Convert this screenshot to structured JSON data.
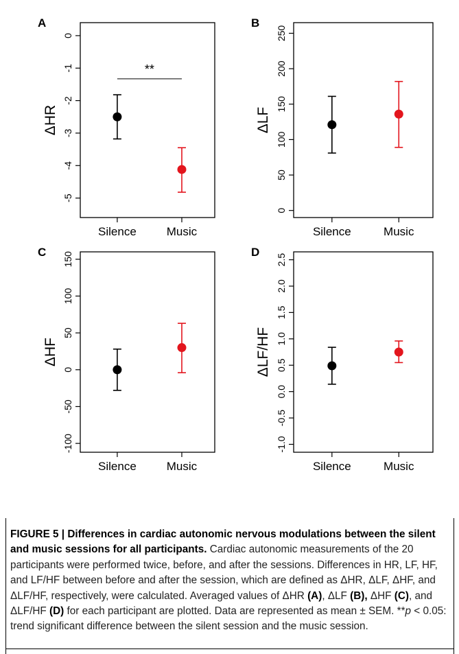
{
  "colors": {
    "silence": "#000000",
    "music": "#e3151d"
  },
  "chart_data": [
    {
      "panel": "A",
      "type": "scatter",
      "ylabel": "ΔHR",
      "categories": [
        "Silence",
        "Music"
      ],
      "ylim": [
        -5.6,
        0.4
      ],
      "yticks": [
        0,
        -1,
        -2,
        -3,
        -4,
        -5
      ],
      "yticklabels": [
        "0",
        "-1",
        "-2",
        "-3",
        "-4",
        "-5"
      ],
      "series": [
        {
          "category": "Silence",
          "mean": -2.5,
          "err_low": -3.18,
          "err_high": -1.82,
          "color": "silence"
        },
        {
          "category": "Music",
          "mean": -4.12,
          "err_low": -4.82,
          "err_high": -3.45,
          "color": "music"
        }
      ],
      "annotation": {
        "text": "**",
        "y": -1.33
      }
    },
    {
      "panel": "B",
      "type": "scatter",
      "ylabel": "ΔLF",
      "categories": [
        "Silence",
        "Music"
      ],
      "ylim": [
        -10,
        265
      ],
      "yticks": [
        0,
        50,
        100,
        150,
        200,
        250
      ],
      "yticklabels": [
        "0",
        "50",
        "100",
        "150",
        "200",
        "250"
      ],
      "series": [
        {
          "category": "Silence",
          "mean": 121,
          "err_low": 81,
          "err_high": 161,
          "color": "silence"
        },
        {
          "category": "Music",
          "mean": 136,
          "err_low": 89,
          "err_high": 182,
          "color": "music"
        }
      ]
    },
    {
      "panel": "C",
      "type": "scatter",
      "ylabel": "ΔHF",
      "categories": [
        "Silence",
        "Music"
      ],
      "ylim": [
        -112,
        160
      ],
      "yticks": [
        150,
        100,
        50,
        0,
        -50,
        -100
      ],
      "yticklabels": [
        "150",
        "100",
        "50",
        "0",
        "-50",
        "-100"
      ],
      "series": [
        {
          "category": "Silence",
          "mean": 0,
          "err_low": -28,
          "err_high": 28,
          "color": "silence"
        },
        {
          "category": "Music",
          "mean": 30,
          "err_low": -4,
          "err_high": 63,
          "color": "music"
        }
      ]
    },
    {
      "panel": "D",
      "type": "scatter",
      "ylabel": "ΔLF/HF",
      "categories": [
        "Silence",
        "Music"
      ],
      "ylim": [
        -1.15,
        2.65
      ],
      "yticks": [
        2.5,
        2.0,
        1.5,
        1.0,
        0.5,
        0.0,
        -0.5,
        -1.0
      ],
      "yticklabels": [
        "2.5",
        "2.0",
        "1.5",
        "1.0",
        "0.5",
        "0.0",
        "-0.5",
        "-1.0"
      ],
      "series": [
        {
          "category": "Silence",
          "mean": 0.49,
          "err_low": 0.14,
          "err_high": 0.84,
          "color": "silence"
        },
        {
          "category": "Music",
          "mean": 0.75,
          "err_low": 0.55,
          "err_high": 0.96,
          "color": "music"
        }
      ]
    }
  ],
  "caption": {
    "title": "FIGURE 5 | Differences in cardiac autonomic nervous modulations between the silent and music sessions for all participants.",
    "body_1": " Cardiac autonomic measurements of the 20 participants were performed twice, before, and after the sessions. Differences in HR, LF, HF, and LF/HF between before and after the session, which are defined as ΔHR, ΔLF, ΔHF, and ΔLF/HF, respectively, were calculated. Averaged values of ΔHR ",
    "ref_a": "(A)",
    "sep_1": ", ΔLF ",
    "ref_b": "(B),",
    "sep_2": " ΔHF ",
    "ref_c": "(C)",
    "sep_3": ", and ΔLF/HF ",
    "ref_d": "(D)",
    "body_2": " for each participant are plotted. Data are represented as mean ± SEM. ",
    "sig_marker": "**",
    "sig_p": "p",
    "body_3": " < 0.05: trend significant difference between the silent session and the music session."
  }
}
